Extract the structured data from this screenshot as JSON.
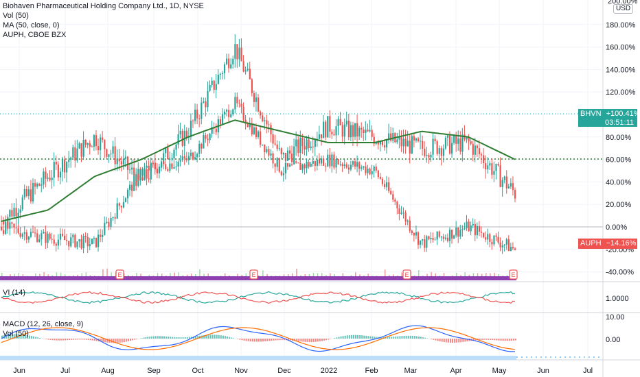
{
  "legend": {
    "title": "Biohaven Pharmaceutical Holding Company Ltd., 1D, NYSE",
    "vol": "Vol (50)",
    "ma": "MA (50, close, 0)",
    "compare": "AUPH, CBOE BZX",
    "vi": "VI (14)",
    "macd": "MACD (12, 26, close, 9)",
    "macd_vol": "Vol (50)"
  },
  "currency": "USD",
  "axis_top_label": "200.00%",
  "price_axis": {
    "ticks": [
      "180.00%",
      "160.00%",
      "140.00%",
      "120.00%",
      "100.00%",
      "80.00%",
      "60.00%",
      "40.00%",
      "20.00%",
      "0.00%",
      "-20.00%",
      "-40.00%"
    ],
    "tick_values": [
      180,
      160,
      140,
      120,
      100,
      80,
      60,
      40,
      20,
      0,
      -20,
      -40
    ]
  },
  "vi_axis": {
    "tick": "1.0000"
  },
  "macd_axis": {
    "ticks": [
      "10.00",
      "0.00"
    ]
  },
  "time_axis": [
    "Jun",
    "Jul",
    "Aug",
    "Sep",
    "Oct",
    "Nov",
    "Dec",
    "2022",
    "Feb",
    "Mar",
    "Apr",
    "May",
    "Jun",
    "Jul"
  ],
  "tags": {
    "bhvn": {
      "symbol": "BHVN",
      "value": "+100.41%",
      "countdown": "03:51:11",
      "color": "#26a69a"
    },
    "aunh": {
      "symbol": "AUPH",
      "value": "−14.16%",
      "color": "#ef5350"
    }
  },
  "earnings_marker": "E",
  "colors": {
    "up": "#26a69a",
    "down": "#ef5350",
    "ma": "#2e7d32",
    "compare": "#ef5350",
    "macd": "#2962ff",
    "signal": "#ff6d00",
    "vol": "#7b1fa2"
  },
  "chart_data": {
    "type": "candlestick",
    "series": [
      {
        "name": "BHVN",
        "last": 100.41,
        "monthly_approx": [
          {
            "x": "Jun",
            "y": 5
          },
          {
            "x": "Jul",
            "y": 45
          },
          {
            "x": "Aug",
            "y": 80
          },
          {
            "x": "Sep",
            "y": 40
          },
          {
            "x": "Oct",
            "y": 85
          },
          {
            "x": "Nov",
            "y": 160
          },
          {
            "x": "Dec",
            "y": 60
          },
          {
            "x": "2022",
            "y": 90
          },
          {
            "x": "Feb",
            "y": 80
          },
          {
            "x": "Mar",
            "y": 70
          },
          {
            "x": "Apr",
            "y": 75
          },
          {
            "x": "May",
            "y": 30
          }
        ]
      },
      {
        "name": "AUPH",
        "last": -14.16,
        "monthly_approx": [
          {
            "x": "Jun",
            "y": 0
          },
          {
            "x": "Jul",
            "y": -10
          },
          {
            "x": "Aug",
            "y": -15
          },
          {
            "x": "Sep",
            "y": 50
          },
          {
            "x": "Oct",
            "y": 60
          },
          {
            "x": "Nov",
            "y": 110
          },
          {
            "x": "Dec",
            "y": 50
          },
          {
            "x": "2022",
            "y": 60
          },
          {
            "x": "Feb",
            "y": 50
          },
          {
            "x": "Mar",
            "y": -15
          },
          {
            "x": "Apr",
            "y": 0
          },
          {
            "x": "May",
            "y": -20
          }
        ]
      },
      {
        "name": "MA (50, close, 0)",
        "monthly_approx": [
          {
            "x": "Jun",
            "y": 5
          },
          {
            "x": "Jul",
            "y": 15
          },
          {
            "x": "Aug",
            "y": 45
          },
          {
            "x": "Sep",
            "y": 60
          },
          {
            "x": "Oct",
            "y": 80
          },
          {
            "x": "Nov",
            "y": 95
          },
          {
            "x": "Dec",
            "y": 85
          },
          {
            "x": "2022",
            "y": 75
          },
          {
            "x": "Feb",
            "y": 75
          },
          {
            "x": "Mar",
            "y": 85
          },
          {
            "x": "Apr",
            "y": 80
          },
          {
            "x": "May",
            "y": 60
          }
        ]
      }
    ],
    "ylim": [
      -40,
      200
    ]
  }
}
